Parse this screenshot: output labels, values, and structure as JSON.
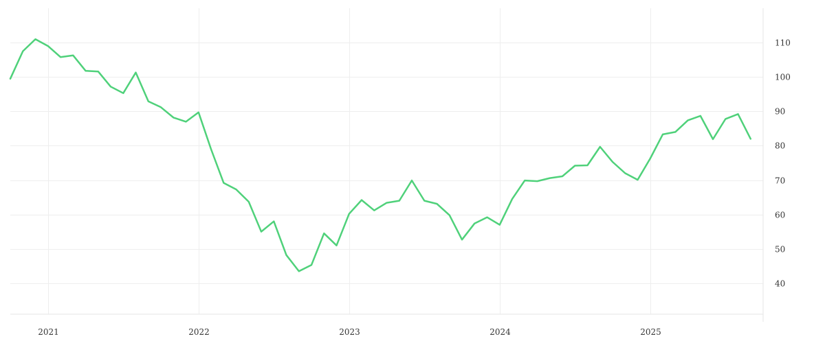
{
  "chart_data": {
    "type": "line",
    "title": "",
    "xlabel": "",
    "ylabel": "",
    "x_tick_labels": [
      "2021",
      "2022",
      "2023",
      "2024",
      "2025"
    ],
    "y_ticks": [
      40,
      50,
      60,
      70,
      80,
      90,
      100,
      110
    ],
    "ylim": [
      31,
      120
    ],
    "xlim": [
      "2020-10",
      "2025-10"
    ],
    "y_axis_position": "right",
    "grid": true,
    "legend": "none",
    "colors": {
      "line": "#4fd17a",
      "grid": "#eeeeee",
      "text": "#333333"
    },
    "series": [
      {
        "x": [
          "2020-10",
          "2020-11",
          "2020-12",
          "2021-01",
          "2021-02",
          "2021-03",
          "2021-04",
          "2021-05",
          "2021-06",
          "2021-07",
          "2021-08",
          "2021-09",
          "2021-10",
          "2021-11",
          "2021-12",
          "2022-01",
          "2022-02",
          "2022-03",
          "2022-04",
          "2022-05",
          "2022-06",
          "2022-07",
          "2022-08",
          "2022-09",
          "2022-10",
          "2022-11",
          "2022-12",
          "2023-01",
          "2023-02",
          "2023-03",
          "2023-04",
          "2023-05",
          "2023-06",
          "2023-07",
          "2023-08",
          "2023-09",
          "2023-10",
          "2023-11",
          "2023-12",
          "2024-01",
          "2024-02",
          "2024-03",
          "2024-04",
          "2024-05",
          "2024-06",
          "2024-07",
          "2024-08",
          "2024-09",
          "2024-10",
          "2024-11",
          "2024-12",
          "2025-01",
          "2025-02",
          "2025-03",
          "2025-04",
          "2025-05",
          "2025-06",
          "2025-07",
          "2025-08",
          "2025-09"
        ],
        "values": [
          99.5,
          107.5,
          111,
          109,
          105.8,
          106.3,
          101.8,
          101.6,
          97.2,
          95.3,
          101.3,
          92.9,
          91.2,
          88.2,
          87,
          89.7,
          79,
          69.2,
          67.3,
          63.7,
          55,
          58,
          48.2,
          43.5,
          45.3,
          54.5,
          51,
          60.2,
          64.2,
          61.2,
          63.4,
          64,
          69.9,
          64,
          63.1,
          59.8,
          52.7,
          57.4,
          59.2,
          57,
          64.5,
          69.9,
          69.7,
          70.6,
          71.1,
          74.2,
          74.3,
          79.7,
          75.3,
          72,
          70.1,
          76.3,
          83.3,
          84,
          87.4,
          88.7,
          81.9,
          87.8,
          89.2,
          82
        ]
      }
    ]
  }
}
